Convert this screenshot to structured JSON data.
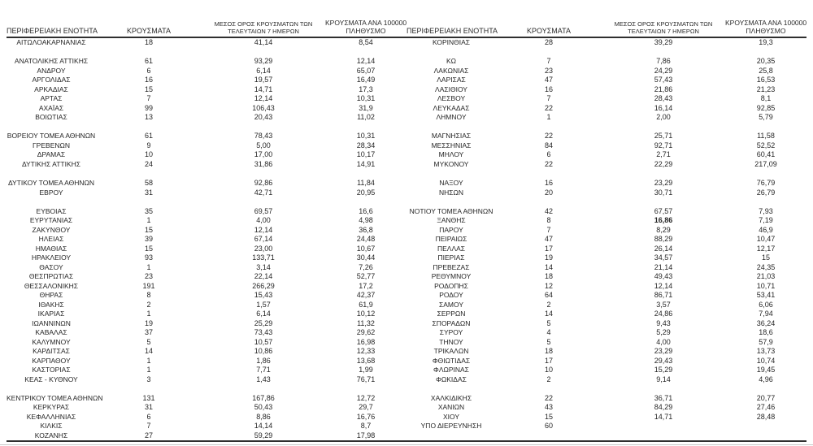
{
  "table": {
    "headers": {
      "region": "ΠΕΡΙΦΕΡΕΙΑΚΗ ΕΝΟΤΗΤΑ",
      "cases": "ΚΡΟΥΣΜΑΤΑ",
      "avg7_line1": "ΜΕΣΟΣ ΟΡΟΣ ΚΡΟΥΣΜΑΤΩΝ ΤΩΝ",
      "avg7_line2": "ΤΕΛΕΥΤΑΙΩΝ 7 ΗΜΕΡΩΝ",
      "per100k_line1": "ΚΡΟΥΣΜΑΤΑ ΑΝΑ 100000",
      "per100k_line2": "ΠΛΗΘΥΣΜΟ"
    },
    "left_groups": [
      [
        [
          "ΑΙΤΩΛΟΑΚΑΡΝΑΝΙΑΣ",
          "18",
          "41,14",
          "8,54"
        ]
      ],
      [
        [
          "ΑΝΑΤΟΛΙΚΗΣ ΑΤΤΙΚΗΣ",
          "61",
          "93,29",
          "12,14"
        ],
        [
          "ΑΝΔΡΟΥ",
          "6",
          "6,14",
          "65,07"
        ],
        [
          "ΑΡΓΟΛΙΔΑΣ",
          "16",
          "19,57",
          "16,49"
        ],
        [
          "ΑΡΚΑΔΙΑΣ",
          "15",
          "14,71",
          "17,3"
        ],
        [
          "ΑΡΤΑΣ",
          "7",
          "12,14",
          "10,31"
        ],
        [
          "ΑΧΑΪΑΣ",
          "99",
          "106,43",
          "31,9"
        ],
        [
          "ΒΟΙΩΤΙΑΣ",
          "13",
          "20,43",
          "11,02"
        ]
      ],
      [
        [
          "ΒΟΡΕΙΟΥ ΤΟΜΕΑ ΑΘΗΝΩΝ",
          "61",
          "78,43",
          "10,31"
        ],
        [
          "ΓΡΕΒΕΝΩΝ",
          "9",
          "5,00",
          "28,34"
        ],
        [
          "ΔΡΑΜΑΣ",
          "10",
          "17,00",
          "10,17"
        ],
        [
          "ΔΥΤΙΚΗΣ ΑΤΤΙΚΗΣ",
          "24",
          "31,86",
          "14,91"
        ]
      ],
      [
        [
          "ΔΥΤΙΚΟΥ ΤΟΜΕΑ ΑΘΗΝΩΝ",
          "58",
          "92,86",
          "11,84"
        ],
        [
          "ΕΒΡΟΥ",
          "31",
          "42,71",
          "20,95"
        ]
      ],
      [
        [
          "ΕΥΒΟΙΑΣ",
          "35",
          "69,57",
          "16,6"
        ],
        [
          "ΕΥΡΥΤΑΝΙΑΣ",
          "1",
          "4,00",
          "4,98"
        ],
        [
          "ΖΑΚΥΝΘΟΥ",
          "15",
          "12,14",
          "36,8"
        ],
        [
          "ΗΛΕΙΑΣ",
          "39",
          "67,14",
          "24,48"
        ],
        [
          "ΗΜΑΘΙΑΣ",
          "15",
          "23,00",
          "10,67"
        ],
        [
          "ΗΡΑΚΛΕΙΟΥ",
          "93",
          "133,71",
          "30,44"
        ],
        [
          "ΘΑΣΟΥ",
          "1",
          "3,14",
          "7,26"
        ],
        [
          "ΘΕΣΠΡΩΤΙΑΣ",
          "23",
          "22,14",
          "52,77"
        ],
        [
          "ΘΕΣΣΑΛΟΝΙΚΗΣ",
          "191",
          "266,29",
          "17,2"
        ],
        [
          "ΘΗΡΑΣ",
          "8",
          "15,43",
          "42,37"
        ],
        [
          "ΙΘΑΚΗΣ",
          "2",
          "1,57",
          "61,9"
        ],
        [
          "ΙΚΑΡΙΑΣ",
          "1",
          "6,14",
          "10,12"
        ],
        [
          "ΙΩΑΝΝΙΝΩΝ",
          "19",
          "25,29",
          "11,32"
        ],
        [
          "ΚΑΒΑΛΑΣ",
          "37",
          "73,43",
          "29,62"
        ],
        [
          "ΚΑΛΥΜΝΟΥ",
          "5",
          "10,57",
          "16,98"
        ],
        [
          "ΚΑΡΔΙΤΣΑΣ",
          "14",
          "10,86",
          "12,33"
        ],
        [
          "ΚΑΡΠΑΘΟΥ",
          "1",
          "1,86",
          "13,68"
        ],
        [
          "ΚΑΣΤΟΡΙΑΣ",
          "1",
          "7,71",
          "1,99"
        ],
        [
          "ΚΕΑΣ - ΚΥΘΝΟΥ",
          "3",
          "1,43",
          "76,71"
        ]
      ],
      [
        [
          "ΚΕΝΤΡΙΚΟΥ ΤΟΜΕΑ ΑΘΗΝΩΝ",
          "131",
          "167,86",
          "12,72"
        ],
        [
          "ΚΕΡΚΥΡΑΣ",
          "31",
          "50,43",
          "29,7"
        ],
        [
          "ΚΕΦΑΛΛΗΝΙΑΣ",
          "6",
          "8,86",
          "16,76"
        ],
        [
          "ΚΙΛΚΙΣ",
          "7",
          "14,14",
          "8,7"
        ],
        [
          "ΚΟΖΑΝΗΣ",
          "27",
          "59,29",
          "17,98"
        ]
      ]
    ],
    "right_groups": [
      [
        [
          "ΚΟΡΙΝΘΙΑΣ",
          "28",
          "39,29",
          "19,3"
        ]
      ],
      [
        [
          "ΚΩ",
          "7",
          "7,86",
          "20,35"
        ],
        [
          "ΛΑΚΩΝΙΑΣ",
          "23",
          "24,29",
          "25,8"
        ],
        [
          "ΛΑΡΙΣΑΣ",
          "47",
          "57,43",
          "16,53"
        ],
        [
          "ΛΑΣΙΘΙΟΥ",
          "16",
          "21,86",
          "21,23"
        ],
        [
          "ΛΕΣΒΟΥ",
          "7",
          "28,43",
          "8,1"
        ],
        [
          "ΛΕΥΚΑΔΑΣ",
          "22",
          "16,14",
          "92,85"
        ],
        [
          "ΛΗΜΝΟΥ",
          "1",
          "2,00",
          "5,79"
        ]
      ],
      [
        [
          "ΜΑΓΝΗΣΙΑΣ",
          "22",
          "25,71",
          "11,58"
        ],
        [
          "ΜΕΣΣΗΝΙΑΣ",
          "84",
          "92,71",
          "52,52"
        ],
        [
          "ΜΗΛΟΥ",
          "6",
          "2,71",
          "60,41"
        ],
        [
          "ΜΥΚΟΝΟΥ",
          "22",
          "22,29",
          "217,09"
        ]
      ],
      [
        [
          "ΝΑΞΟΥ",
          "16",
          "23,29",
          "76,79"
        ],
        [
          "ΝΗΣΩΝ",
          "20",
          "30,71",
          "26,79"
        ]
      ],
      [
        [
          "ΝΟΤΙΟΥ ΤΟΜΕΑ ΑΘΗΝΩΝ",
          "42",
          "67,57",
          "7,93"
        ],
        [
          "ΞΑΝΘΗΣ",
          "8",
          "16,86",
          "7,19"
        ],
        [
          "ΠΑΡΟΥ",
          "7",
          "8,29",
          "46,9"
        ],
        [
          "ΠΕΙΡΑΙΩΣ",
          "47",
          "88,29",
          "10,47"
        ],
        [
          "ΠΕΛΛΑΣ",
          "17",
          "26,14",
          "12,17"
        ],
        [
          "ΠΙΕΡΙΑΣ",
          "19",
          "34,57",
          "15"
        ],
        [
          "ΠΡΕΒΕΖΑΣ",
          "14",
          "21,14",
          "24,35"
        ],
        [
          "ΡΕΘΥΜΝΟΥ",
          "18",
          "49,43",
          "21,03"
        ],
        [
          "ΡΟΔΟΠΗΣ",
          "12",
          "12,14",
          "10,71"
        ],
        [
          "ΡΟΔΟΥ",
          "64",
          "86,71",
          "53,41"
        ],
        [
          "ΣΑΜΟΥ",
          "2",
          "3,57",
          "6,06"
        ],
        [
          "ΣΕΡΡΩΝ",
          "14",
          "24,86",
          "7,94"
        ],
        [
          "ΣΠΟΡΑΔΩΝ",
          "5",
          "9,43",
          "36,24"
        ],
        [
          "ΣΥΡΟΥ",
          "4",
          "5,29",
          "18,6"
        ],
        [
          "ΤΗΝΟΥ",
          "5",
          "4,00",
          "57,9"
        ],
        [
          "ΤΡΙΚΑΛΩΝ",
          "18",
          "23,29",
          "13,73"
        ],
        [
          "ΦΘΙΩΤΙΔΑΣ",
          "17",
          "29,43",
          "10,74"
        ],
        [
          "ΦΛΩΡΙΝΑΣ",
          "10",
          "15,29",
          "19,45"
        ],
        [
          "ΦΩΚΙΔΑΣ",
          "2",
          "9,14",
          "4,96"
        ]
      ],
      [
        [
          "ΧΑΛΚΙΔΙΚΗΣ",
          "22",
          "36,71",
          "20,77"
        ],
        [
          "ΧΑΝΙΩΝ",
          "43",
          "84,29",
          "27,46"
        ],
        [
          "ΧΙΟΥ",
          "15",
          "14,71",
          "28,48"
        ],
        [
          "ΥΠΟ ΔΙΕΡΕΥΝΗΣΗ",
          "60",
          "",
          ""
        ]
      ]
    ],
    "bold_cells": [
      {
        "side": "right",
        "region": "ΞΑΝΘΗΣ",
        "col": 2
      }
    ]
  },
  "colors": {
    "text": "#262626",
    "rule_dark": "#2f2f2f",
    "rule_light": "#c8c8c8",
    "background": "#ffffff"
  }
}
